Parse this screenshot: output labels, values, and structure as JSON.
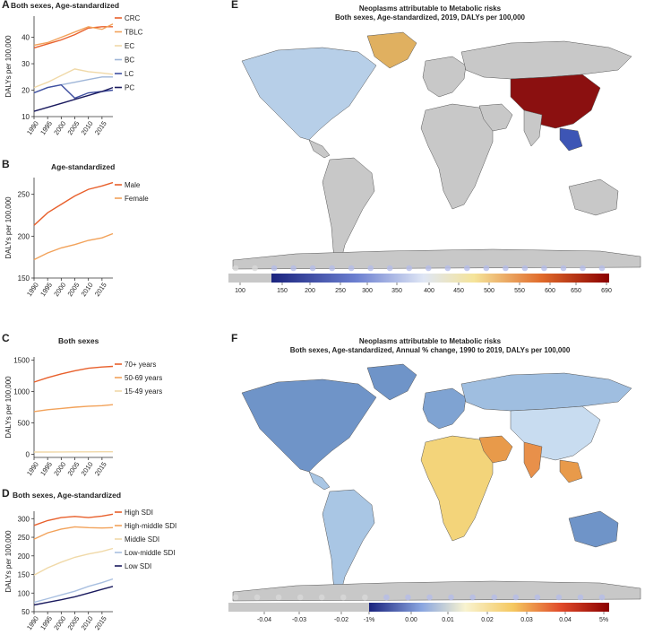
{
  "panels": {
    "A": {
      "label": "A",
      "title": "Both sexes, Age-standardized"
    },
    "B": {
      "label": "B",
      "title": "Age-standardized"
    },
    "C": {
      "label": "C",
      "title": "Both sexes"
    },
    "D": {
      "label": "D",
      "title": "Both sexes, Age-standardized"
    },
    "E": {
      "label": "E",
      "title_line1": "Neoplasms attributable to Metabolic risks",
      "title_line2": "Both sexes, Age-standardized, 2019, DALYs per 100,000"
    },
    "F": {
      "label": "F",
      "title_line1": "Neoplasms attributable to Metabolic risks",
      "title_line2": "Both sexes, Age-standardized, Annual % change, 1990 to 2019, DALYs per 100,000"
    }
  },
  "colors": {
    "gray": "#c8c8c8",
    "ocean": "#ffffff",
    "darkred": "#8b0000",
    "darkblue": "#1a237e"
  },
  "chart_data": [
    {
      "id": "A",
      "type": "line",
      "x": [
        1990,
        1995,
        2000,
        2005,
        2010,
        2015,
        2019
      ],
      "xticks": [
        "1990",
        "1995",
        "2000",
        "2005",
        "2010",
        "2015"
      ],
      "ylabel": "DALYs per 100,000",
      "ylim": [
        10,
        48
      ],
      "yticks": [
        10,
        20,
        30,
        40
      ],
      "series": [
        {
          "name": "CRC",
          "color": "#e8602c",
          "values": [
            36,
            37.5,
            39,
            41,
            43.5,
            44,
            44
          ]
        },
        {
          "name": "TBLC",
          "color": "#f2a25a",
          "values": [
            37,
            38,
            40,
            42,
            44,
            43,
            45
          ]
        },
        {
          "name": "EC",
          "color": "#f0d9a8",
          "values": [
            21,
            23,
            25.5,
            28,
            27,
            26.5,
            26
          ]
        },
        {
          "name": "BC",
          "color": "#9fb6d8",
          "values": [
            19,
            21,
            22,
            23,
            24,
            25,
            25
          ]
        },
        {
          "name": "LC",
          "color": "#3f4fa0",
          "values": [
            19,
            21,
            22,
            17,
            19,
            19.5,
            20
          ]
        },
        {
          "name": "PC",
          "color": "#1a1a5e",
          "values": [
            12,
            13.5,
            15,
            16.5,
            18,
            19.5,
            21
          ]
        }
      ]
    },
    {
      "id": "B",
      "type": "line",
      "x": [
        1990,
        1995,
        2000,
        2005,
        2010,
        2015,
        2019
      ],
      "xticks": [
        "1990",
        "1995",
        "2000",
        "2005",
        "2010",
        "2015"
      ],
      "ylabel": "DALYs per 100,000",
      "ylim": [
        150,
        270
      ],
      "yticks": [
        150,
        200,
        250
      ],
      "series": [
        {
          "name": "Male",
          "color": "#e8602c",
          "values": [
            213,
            228,
            238,
            248,
            256,
            260,
            264
          ]
        },
        {
          "name": "Female",
          "color": "#f2a25a",
          "values": [
            172,
            180,
            186,
            190,
            195,
            198,
            203
          ]
        }
      ]
    },
    {
      "id": "C",
      "type": "line",
      "x": [
        1990,
        1995,
        2000,
        2005,
        2010,
        2015,
        2019
      ],
      "xticks": [
        "1990",
        "1995",
        "2000",
        "2005",
        "2010",
        "2015"
      ],
      "ylabel": "DALYs per 100,000",
      "ylim": [
        -50,
        1550
      ],
      "yticks": [
        0,
        500,
        1000,
        1500
      ],
      "series": [
        {
          "name": "70+ years",
          "color": "#e8602c",
          "values": [
            1150,
            1220,
            1280,
            1330,
            1370,
            1390,
            1400
          ]
        },
        {
          "name": "50-69 years",
          "color": "#f2a25a",
          "values": [
            680,
            710,
            730,
            750,
            765,
            775,
            790
          ]
        },
        {
          "name": "15-49 years",
          "color": "#f0d9a8",
          "values": [
            35,
            36,
            37,
            38,
            39,
            40,
            40
          ]
        }
      ]
    },
    {
      "id": "D",
      "type": "line",
      "x": [
        1990,
        1995,
        2000,
        2005,
        2010,
        2015,
        2019
      ],
      "xticks": [
        "1990",
        "1995",
        "2000",
        "2005",
        "2010",
        "2015"
      ],
      "ylabel": "DALYs per 100,000",
      "ylim": [
        50,
        320
      ],
      "yticks": [
        50,
        100,
        150,
        200,
        250,
        300
      ],
      "series": [
        {
          "name": "High SDI",
          "color": "#e8602c",
          "values": [
            282,
            295,
            303,
            306,
            303,
            307,
            312
          ]
        },
        {
          "name": "High-middle SDI",
          "color": "#f2a25a",
          "values": [
            245,
            262,
            272,
            278,
            276,
            275,
            276
          ]
        },
        {
          "name": "Middle SDI",
          "color": "#f0d9a8",
          "values": [
            148,
            168,
            183,
            196,
            205,
            212,
            220
          ]
        },
        {
          "name": "Low-middle SDI",
          "color": "#a8bfe0",
          "values": [
            75,
            85,
            95,
            105,
            118,
            128,
            138
          ]
        },
        {
          "name": "Low SDI",
          "color": "#1a1a5e",
          "values": [
            68,
            75,
            82,
            90,
            100,
            110,
            118
          ]
        }
      ]
    },
    {
      "id": "E",
      "type": "heatmap",
      "colorbar_ticks": [
        "100",
        "150",
        "200",
        "250",
        "300",
        "350",
        "400",
        "450",
        "500",
        "550",
        "600",
        "650",
        "690"
      ],
      "colorbar_range": [
        70,
        690
      ]
    },
    {
      "id": "F",
      "type": "heatmap",
      "colorbar_ticks": [
        "-0.04",
        "-0.03",
        "-0.02",
        "-1%",
        "0.00",
        "0.01",
        "0.02",
        "0.03",
        "0.04",
        "5%"
      ],
      "colorbar_range": [
        -0.045,
        0.05
      ]
    }
  ]
}
